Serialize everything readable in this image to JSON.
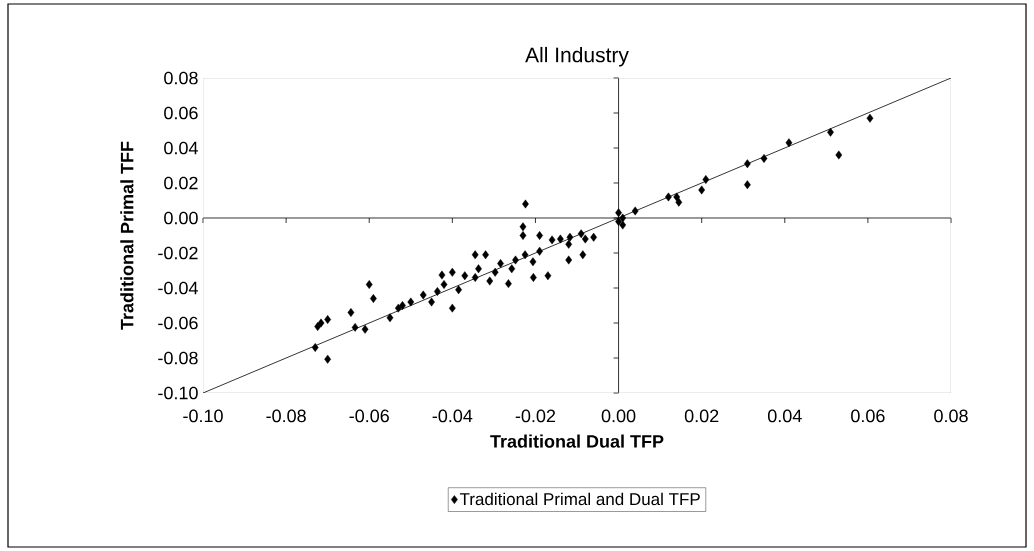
{
  "chart_data": {
    "type": "scatter",
    "title": "All Industry",
    "xlabel": "Traditional Dual TFP",
    "ylabel": "Traditional Primal TFF",
    "xlim": [
      -0.1,
      0.08
    ],
    "ylim": [
      -0.1,
      0.08
    ],
    "xticks": [
      {
        "value": -0.1,
        "label": "-0.10"
      },
      {
        "value": -0.08,
        "label": "-0.08"
      },
      {
        "value": -0.06,
        "label": "-0.06"
      },
      {
        "value": -0.04,
        "label": "-0.04"
      },
      {
        "value": -0.02,
        "label": "-0.02"
      },
      {
        "value": 0,
        "label": "0.00"
      },
      {
        "value": 0.02,
        "label": "0.02"
      },
      {
        "value": 0.04,
        "label": "0.04"
      },
      {
        "value": 0.06,
        "label": "0.06"
      },
      {
        "value": 0.08,
        "label": "0.08"
      }
    ],
    "yticks": [
      {
        "value": -0.1,
        "label": "-0.10"
      },
      {
        "value": -0.08,
        "label": "-0.08"
      },
      {
        "value": -0.06,
        "label": "-0.06"
      },
      {
        "value": -0.04,
        "label": "-0.04"
      },
      {
        "value": -0.02,
        "label": "-0.02"
      },
      {
        "value": 0,
        "label": "0.00"
      },
      {
        "value": 0.02,
        "label": "0.02"
      },
      {
        "value": 0.04,
        "label": "0.04"
      },
      {
        "value": 0.06,
        "label": "0.06"
      },
      {
        "value": 0.08,
        "label": "0.08"
      }
    ],
    "legend": "bottom",
    "marker": "diamond",
    "series": [
      {
        "name": "Traditional Primal and Dual TFP",
        "color": "#000000",
        "x": [
          0.0605,
          0.051,
          0.053,
          0.041,
          0.035,
          0.031,
          0.031,
          0.021,
          0.02,
          0.014,
          0.012,
          0.0145,
          0.004,
          0.0,
          0.0,
          0.001,
          0.001,
          -0.006,
          -0.0086,
          -0.009,
          -0.008,
          -0.0117,
          -0.012,
          -0.014,
          -0.016,
          -0.012,
          -0.017,
          -0.019,
          -0.0206,
          -0.0205,
          -0.019,
          -0.0224,
          -0.023,
          -0.023,
          -0.0225,
          -0.0248,
          -0.0257,
          -0.0265,
          -0.0284,
          -0.0297,
          -0.031,
          -0.032,
          -0.0345,
          -0.0337,
          -0.0345,
          -0.037,
          -0.0385,
          -0.04,
          -0.04,
          -0.042,
          -0.0425,
          -0.045,
          -0.0436,
          -0.047,
          -0.05,
          -0.052,
          -0.053,
          -0.055,
          -0.059,
          -0.06,
          -0.061,
          -0.0634,
          -0.0644,
          -0.07,
          -0.0716,
          -0.0724,
          -0.07,
          -0.073
        ],
        "values": [
          0.057,
          0.049,
          0.036,
          0.043,
          0.034,
          0.031,
          0.019,
          0.022,
          0.016,
          0.012,
          0.012,
          0.009,
          0.004,
          0.003,
          -0.002,
          -0.004,
          0.0,
          -0.011,
          -0.021,
          -0.009,
          -0.012,
          -0.011,
          -0.015,
          -0.012,
          -0.0125,
          -0.024,
          -0.033,
          -0.019,
          -0.025,
          -0.034,
          -0.01,
          0.008,
          -0.005,
          -0.01,
          -0.021,
          -0.024,
          -0.029,
          -0.0375,
          -0.026,
          -0.031,
          -0.036,
          -0.021,
          -0.021,
          -0.029,
          -0.034,
          -0.033,
          -0.041,
          -0.031,
          -0.0515,
          -0.038,
          -0.0326,
          -0.048,
          -0.042,
          -0.044,
          -0.048,
          -0.05,
          -0.0515,
          -0.057,
          -0.046,
          -0.038,
          -0.0636,
          -0.0625,
          -0.054,
          -0.058,
          -0.06,
          -0.062,
          -0.0807,
          -0.074
        ]
      },
      {
        "type": "line",
        "color": "#000000",
        "marker": "none",
        "x": [
          -0.1,
          0.08
        ],
        "values": [
          -0.1,
          0.08
        ]
      }
    ]
  }
}
